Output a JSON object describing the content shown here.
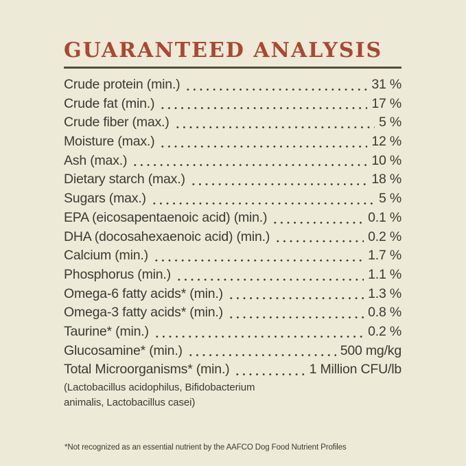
{
  "page": {
    "colors": {
      "background": "#EDEAD8",
      "text": "#3B3A30",
      "accent": "#AC4731",
      "rule": "#514E3B"
    }
  },
  "header": {
    "title": "GUARANTEED ANALYSIS"
  },
  "analysis": {
    "rows": [
      {
        "label": "Crude protein (min.)",
        "value": "31 %"
      },
      {
        "label": "Crude fat (min.)",
        "value": "17 %"
      },
      {
        "label": "Crude fiber (max.)",
        "value": "5 %"
      },
      {
        "label": "Moisture (max.)",
        "value": "12 %"
      },
      {
        "label": "Ash (max.)",
        "value": "10 %"
      },
      {
        "label": "Dietary starch (max.)",
        "value": "18 %"
      },
      {
        "label": "Sugars (max.)",
        "value": "5 %"
      },
      {
        "label": "EPA (eicosapentaenoic acid) (min.)",
        "value": "0.1 %"
      },
      {
        "label": "DHA (docosahexaenoic acid) (min.)",
        "value": "0.2 %"
      },
      {
        "label": "Calcium (min.)",
        "value": "1.7 %"
      },
      {
        "label": "Phosphorus (min.)",
        "value": "1.1 %"
      },
      {
        "label": "Omega-6 fatty acids* (min.)",
        "value": "1.3 %"
      },
      {
        "label": "Omega-3 fatty acids* (min.)",
        "value": "0.8 %"
      },
      {
        "label": "Taurine* (min.)",
        "value": "0.2 %"
      },
      {
        "label": "Glucosamine* (min.)",
        "value": "500 mg/kg"
      },
      {
        "label": "Total Microorganisms* (min.)",
        "value": "1 Million CFU/lb"
      }
    ],
    "subnote_lines": [
      "(Lactobacillus acidophilus, Bifidobacterium",
      "animalis, Lactobacillus casei)"
    ]
  },
  "footnote": {
    "text": "*Not recognized as an essential nutrient by the AAFCO Dog Food Nutrient Profiles"
  }
}
